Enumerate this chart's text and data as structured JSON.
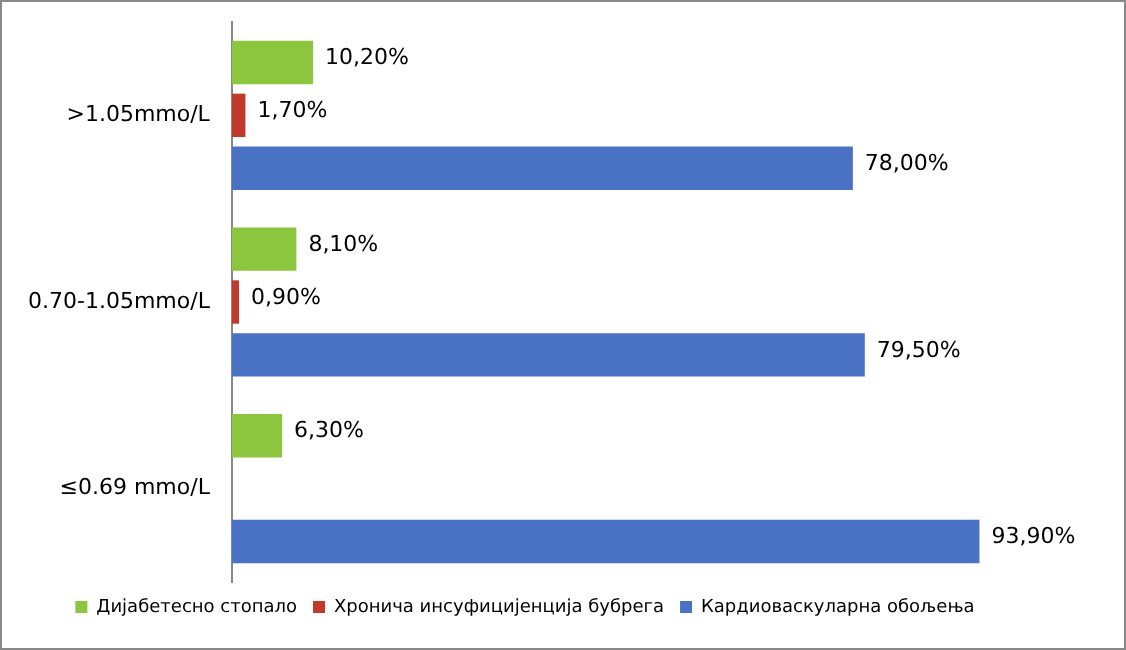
{
  "chart_data": {
    "type": "bar",
    "orientation": "horizontal",
    "categories": [
      ">1.05mmo/L",
      "0.70-1.05mmo/L",
      "≤0.69 mmo/L"
    ],
    "series": [
      {
        "name": "Дијабетесно стопало",
        "color": "#8cc63f",
        "values": [
          10.2,
          8.1,
          6.3
        ],
        "value_labels": [
          "10,20%",
          "8,10%",
          "6,30%"
        ]
      },
      {
        "name": "Хронича инсуфицијенција бубрега",
        "color": "#c0392b",
        "values": [
          1.7,
          0.9,
          null
        ],
        "value_labels": [
          "1,70%",
          "0,90%",
          null
        ]
      },
      {
        "name": "Кардиоваскуларна обољења",
        "color": "#4a72c4",
        "values": [
          78,
          79.5,
          93.9
        ],
        "value_labels": [
          "78,00%",
          "79,50%",
          "93,90%"
        ]
      }
    ],
    "legend": "bottom"
  }
}
